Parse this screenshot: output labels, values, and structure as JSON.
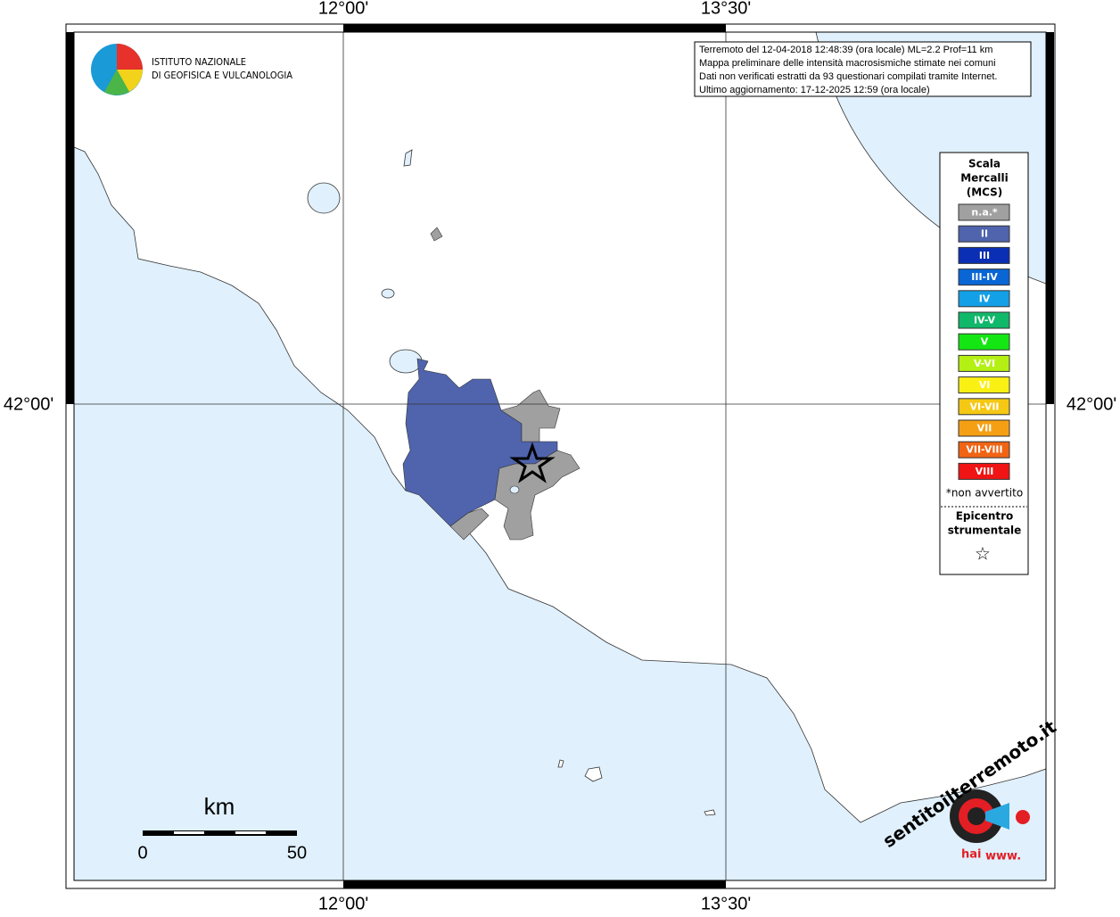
{
  "axes": {
    "top": [
      "12°00'",
      "13°30'"
    ],
    "bottom": [
      "12°00'",
      "13°30'"
    ],
    "left": "42°00'",
    "right": "42°00'"
  },
  "logo": {
    "line1": "ISTITUTO NAZIONALE",
    "line2": "DI GEOFISICA E VULCANOLOGIA"
  },
  "info": [
    "Terremoto del 12-04-2018 12:48:39 (ora locale) ML=2.2 Prof=11 km",
    "Mappa preliminare delle intensità macrosismiche stimate nei comuni",
    "Dati non verificati estratti da 93 questionari compilati tramite Internet.",
    "Ultimo aggiornamento: 17-12-2025 12:59 (ora locale)"
  ],
  "legend": {
    "title": [
      "Scala",
      "Mercalli",
      "(MCS)"
    ],
    "items": [
      {
        "label": "n.a.*",
        "color": "#a0a0a0"
      },
      {
        "label": "II",
        "color": "#4f64ad"
      },
      {
        "label": "III",
        "color": "#0a2fb5"
      },
      {
        "label": "III-IV",
        "color": "#0a66d4"
      },
      {
        "label": "IV",
        "color": "#14a0e6"
      },
      {
        "label": "IV-V",
        "color": "#10b86a"
      },
      {
        "label": "V",
        "color": "#14e614"
      },
      {
        "label": "V-VI",
        "color": "#b4f014"
      },
      {
        "label": "VI",
        "color": "#faf014"
      },
      {
        "label": "VI-VII",
        "color": "#f5c814"
      },
      {
        "label": "VII",
        "color": "#f5a014"
      },
      {
        "label": "VII-VIII",
        "color": "#f06414"
      },
      {
        "label": "VIII",
        "color": "#f01414"
      }
    ],
    "note": "*non avvertito",
    "epicentre": [
      "Epicentro",
      "strumentale"
    ],
    "star": "☆"
  },
  "scale": {
    "unit": "km",
    "start": "0",
    "end": "50"
  },
  "badge": {
    "top": "sentitoilterremoto.it",
    "hai": "hai",
    "www": "www."
  }
}
